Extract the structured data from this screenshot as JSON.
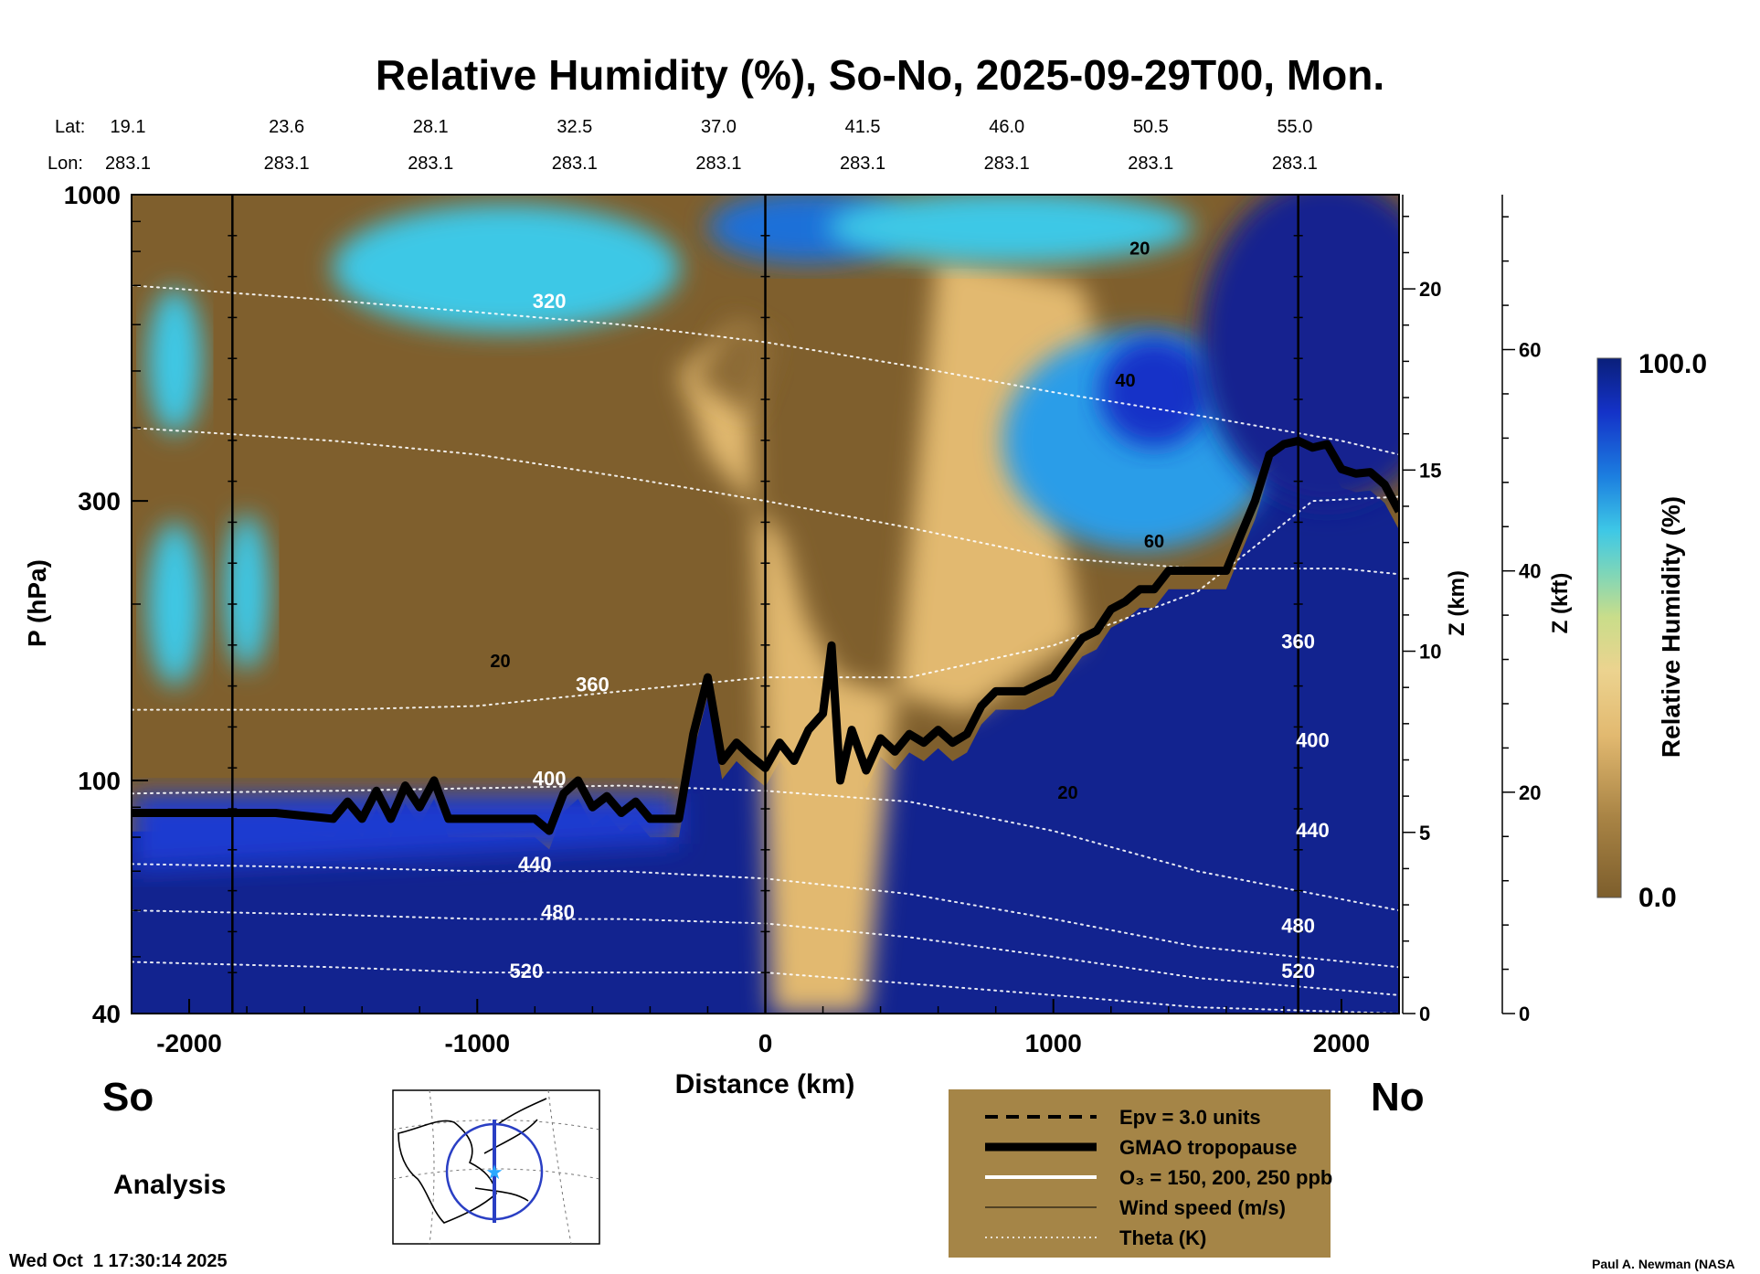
{
  "chart_data": {
    "type": "heatmap",
    "title": "Relative Humidity (%), So-No, 2025-09-29T00, Mon.",
    "xlabel": "Distance (km)",
    "ylabel": "P (hPa)",
    "xlim": [
      -2200,
      2200
    ],
    "ylim": [
      1000,
      40
    ],
    "y_scale": "log",
    "x_ticks": [
      -2000,
      -1000,
      0,
      1000,
      2000
    ],
    "y_ticks": [
      40,
      100,
      300,
      1000
    ],
    "z_km_label": "Z (km)",
    "z_km_ticks": [
      0,
      5,
      10,
      15,
      20
    ],
    "z_kft_label": "Z (kft)",
    "z_kft_ticks": [
      0,
      20,
      40,
      60
    ],
    "lat_label": "Lat:",
    "lon_label": "Lon:",
    "lat_values": [
      "19.1",
      "23.6",
      "28.1",
      "32.5",
      "37.0",
      "41.5",
      "46.0",
      "50.5",
      "55.0"
    ],
    "lon_values": [
      "283.1",
      "283.1",
      "283.1",
      "283.1",
      "283.1",
      "283.1",
      "283.1",
      "283.1",
      "283.1"
    ],
    "lat_lon_x_km": [
      -2200,
      -1700,
      -1200,
      -700,
      -200,
      300,
      800,
      1300,
      1800
    ],
    "colorbar": {
      "label": "Relative Humidity (%)",
      "min": "0.0",
      "max": "100.0",
      "low_color": "#8a6a33",
      "mid_color": "#e8c27a",
      "high_color": "#0a1f7a"
    },
    "vertical_lines_km": [
      -1850,
      0,
      1850
    ],
    "tropopause": {
      "name": "GMAO tropopause",
      "points": [
        [
          -2200,
          88
        ],
        [
          -1900,
          88
        ],
        [
          -1700,
          88
        ],
        [
          -1500,
          86
        ],
        [
          -1450,
          92
        ],
        [
          -1400,
          86
        ],
        [
          -1350,
          96
        ],
        [
          -1300,
          86
        ],
        [
          -1250,
          98
        ],
        [
          -1200,
          90
        ],
        [
          -1150,
          100
        ],
        [
          -1100,
          86
        ],
        [
          -1000,
          86
        ],
        [
          -900,
          86
        ],
        [
          -800,
          86
        ],
        [
          -750,
          82
        ],
        [
          -700,
          95
        ],
        [
          -650,
          100
        ],
        [
          -600,
          90
        ],
        [
          -550,
          94
        ],
        [
          -500,
          88
        ],
        [
          -450,
          92
        ],
        [
          -400,
          86
        ],
        [
          -300,
          86
        ],
        [
          -250,
          120
        ],
        [
          -200,
          150
        ],
        [
          -150,
          108
        ],
        [
          -100,
          116
        ],
        [
          -50,
          110
        ],
        [
          0,
          105
        ],
        [
          50,
          116
        ],
        [
          100,
          108
        ],
        [
          150,
          122
        ],
        [
          200,
          130
        ],
        [
          230,
          170
        ],
        [
          260,
          100
        ],
        [
          300,
          122
        ],
        [
          350,
          104
        ],
        [
          400,
          118
        ],
        [
          450,
          112
        ],
        [
          500,
          120
        ],
        [
          550,
          116
        ],
        [
          600,
          122
        ],
        [
          650,
          116
        ],
        [
          700,
          120
        ],
        [
          750,
          134
        ],
        [
          800,
          142
        ],
        [
          900,
          142
        ],
        [
          1000,
          150
        ],
        [
          1100,
          175
        ],
        [
          1150,
          180
        ],
        [
          1200,
          196
        ],
        [
          1250,
          202
        ],
        [
          1300,
          212
        ],
        [
          1350,
          212
        ],
        [
          1400,
          228
        ],
        [
          1500,
          228
        ],
        [
          1600,
          228
        ],
        [
          1650,
          262
        ],
        [
          1700,
          300
        ],
        [
          1750,
          360
        ],
        [
          1800,
          375
        ],
        [
          1850,
          380
        ],
        [
          1900,
          370
        ],
        [
          1950,
          375
        ],
        [
          2000,
          340
        ],
        [
          2050,
          334
        ],
        [
          2100,
          336
        ],
        [
          2150,
          320
        ],
        [
          2200,
          288
        ]
      ]
    },
    "theta_lines": [
      {
        "label": "320",
        "label_at": [
          -750,
          640
        ],
        "points": [
          [
            -2200,
            700
          ],
          [
            -1500,
            660
          ],
          [
            -1000,
            630
          ],
          [
            -500,
            600
          ],
          [
            0,
            560
          ],
          [
            500,
            510
          ],
          [
            1000,
            460
          ],
          [
            1500,
            420
          ],
          [
            2000,
            380
          ],
          [
            2200,
            360
          ]
        ]
      },
      {
        "label": "",
        "points": [
          [
            -2200,
            400
          ],
          [
            -1500,
            380
          ],
          [
            -1000,
            360
          ],
          [
            -500,
            330
          ],
          [
            0,
            300
          ],
          [
            500,
            270
          ],
          [
            1000,
            240
          ],
          [
            1500,
            230
          ],
          [
            2000,
            230
          ],
          [
            2200,
            225
          ]
        ]
      },
      {
        "label": "360",
        "label_at": [
          -600,
          142
        ],
        "points": [
          [
            -2200,
            132
          ],
          [
            -1500,
            132
          ],
          [
            -1000,
            134
          ],
          [
            -500,
            142
          ],
          [
            0,
            150
          ],
          [
            500,
            150
          ],
          [
            1000,
            170
          ],
          [
            1500,
            210
          ],
          [
            1900,
            300
          ],
          [
            2200,
            305
          ]
        ]
      },
      {
        "label": "400",
        "label_at": [
          -750,
          98
        ],
        "points": [
          [
            -2200,
            95
          ],
          [
            -1500,
            96
          ],
          [
            -1000,
            97
          ],
          [
            -500,
            98
          ],
          [
            0,
            96
          ],
          [
            500,
            92
          ],
          [
            1000,
            82
          ],
          [
            1500,
            70
          ],
          [
            2200,
            60
          ]
        ]
      },
      {
        "label": "440",
        "label_at": [
          -800,
          70
        ],
        "points": [
          [
            -2200,
            72
          ],
          [
            -1500,
            71
          ],
          [
            -1000,
            70
          ],
          [
            -500,
            70
          ],
          [
            0,
            68
          ],
          [
            500,
            64
          ],
          [
            1000,
            58
          ],
          [
            1500,
            52
          ],
          [
            2200,
            48
          ]
        ]
      },
      {
        "label": "480",
        "label_at": [
          -720,
          58
        ],
        "points": [
          [
            -2200,
            60
          ],
          [
            -1500,
            59
          ],
          [
            -1000,
            58
          ],
          [
            -500,
            58
          ],
          [
            0,
            57
          ],
          [
            500,
            54
          ],
          [
            1000,
            50
          ],
          [
            1500,
            46
          ],
          [
            2200,
            43
          ]
        ]
      },
      {
        "label": "520",
        "label_at": [
          -830,
          46
        ],
        "points": [
          [
            -2200,
            49
          ],
          [
            -1500,
            48
          ],
          [
            -1000,
            47
          ],
          [
            -500,
            47
          ],
          [
            0,
            47
          ],
          [
            500,
            45
          ],
          [
            1000,
            43
          ],
          [
            1500,
            41
          ],
          [
            2200,
            40
          ]
        ]
      }
    ],
    "right_theta_labels": [
      {
        "label": "520",
        "at": [
          1850,
          46
        ]
      },
      {
        "label": "480",
        "at": [
          1850,
          55
        ]
      },
      {
        "label": "440",
        "at": [
          1900,
          80
        ]
      },
      {
        "label": "400",
        "at": [
          1900,
          114
        ]
      },
      {
        "label": "360",
        "at": [
          1850,
          168
        ]
      }
    ],
    "wind_labels": [
      {
        "label": "20",
        "at": [
          1050,
          93
        ]
      },
      {
        "label": "20",
        "at": [
          -920,
          156
        ]
      },
      {
        "label": "60",
        "at": [
          1350,
          250
        ]
      },
      {
        "label": "40",
        "at": [
          1250,
          470
        ]
      },
      {
        "label": "20",
        "at": [
          1300,
          790
        ]
      }
    ],
    "legend": {
      "placement": "bottom-right",
      "items": [
        {
          "style": "dashed",
          "label": "Epv = 3.0 units"
        },
        {
          "style": "thick",
          "label": "GMAO tropopause"
        },
        {
          "style": "white",
          "label": "O₃ = 150, 200, 250 ppb"
        },
        {
          "style": "thin",
          "label": "Wind speed (m/s)"
        },
        {
          "style": "dotted",
          "label": "Theta (K)"
        }
      ]
    }
  },
  "page": {
    "left_label": "So",
    "right_label": "No",
    "mode_label": "Analysis",
    "timestamp": "Wed Oct  1 17:30:14 2025",
    "credit": "Paul A. Newman (NASA"
  }
}
